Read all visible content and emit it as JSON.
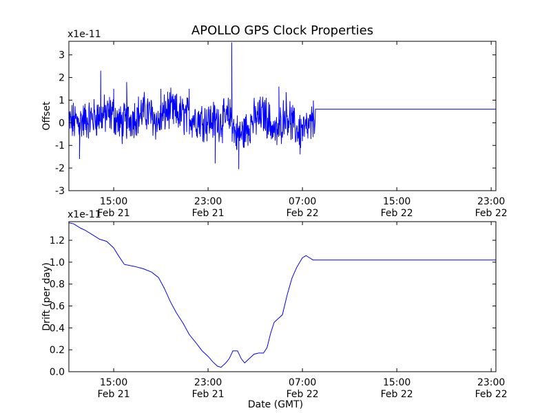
{
  "title": "APOLLO GPS Clock Properties",
  "chart_data": [
    {
      "type": "line",
      "ylabel": "Offset",
      "exponent_label": "x1e-11",
      "xlabel": "",
      "x_ticks": [
        {
          "time": "15:00",
          "date": "Feb 21",
          "hour": 15
        },
        {
          "time": "23:00",
          "date": "Feb 21",
          "hour": 23
        },
        {
          "time": "07:00",
          "date": "Feb 22",
          "hour": 31
        },
        {
          "time": "15:00",
          "date": "Feb 22",
          "hour": 39
        },
        {
          "time": "23:00",
          "date": "Feb 22",
          "hour": 47
        }
      ],
      "xlim_hours": [
        11.2,
        47.4
      ],
      "ylim": [
        -3,
        3.6
      ],
      "y_ticks": [
        "-3",
        "-2",
        "-1",
        "0",
        "1",
        "2",
        "3"
      ],
      "series": [
        {
          "color": "#0000ff",
          "noise_band": [
            -1.1,
            0.9
          ],
          "end_hour": 32.1,
          "x": [
            11.2,
            12.6,
            13.8,
            14.9,
            15.6,
            16.8,
            17.8,
            18.8,
            19.6,
            20.4,
            21.8,
            23.0,
            24.4,
            24.9,
            25.3,
            25.9,
            26.8,
            27.8,
            28.8,
            29.6,
            30.4,
            31.3,
            31.7,
            32.0,
            32.1,
            47.4
          ],
          "y": [
            0.0,
            0.1,
            0.3,
            0.4,
            -0.1,
            0.3,
            0.5,
            0.0,
            0.6,
            0.4,
            0.2,
            0.1,
            0.1,
            0.3,
            -0.5,
            -0.5,
            0.1,
            0.4,
            -0.5,
            0.5,
            -0.3,
            -0.3,
            -0.2,
            0.3,
            0.6,
            0.6
          ],
          "spikes": [
            {
              "x": 13.9,
              "y": 2.3
            },
            {
              "x": 15.0,
              "y": 1.5
            },
            {
              "x": 16.1,
              "y": 1.8
            },
            {
              "x": 19.0,
              "y": 1.5
            },
            {
              "x": 21.4,
              "y": 1.5
            },
            {
              "x": 24.3,
              "y": 1.0
            },
            {
              "x": 25.0,
              "y": 3.55
            },
            {
              "x": 25.6,
              "y": -2.05
            },
            {
              "x": 23.6,
              "y": -1.8
            },
            {
              "x": 12.1,
              "y": -1.6
            },
            {
              "x": 29.0,
              "y": 1.6
            },
            {
              "x": 30.8,
              "y": -1.4
            }
          ]
        }
      ]
    },
    {
      "type": "line",
      "ylabel": "Drift (per day)",
      "exponent_label": "x1e-11",
      "xlabel": "Date (GMT)",
      "x_ticks": [
        {
          "time": "15:00",
          "date": "Feb 21",
          "hour": 15
        },
        {
          "time": "23:00",
          "date": "Feb 21",
          "hour": 23
        },
        {
          "time": "07:00",
          "date": "Feb 22",
          "hour": 31
        },
        {
          "time": "15:00",
          "date": "Feb 22",
          "hour": 39
        },
        {
          "time": "23:00",
          "date": "Feb 22",
          "hour": 47
        }
      ],
      "xlim_hours": [
        11.2,
        47.4
      ],
      "ylim": [
        0.0,
        1.37
      ],
      "y_ticks": [
        "0.0",
        "0.2",
        "0.4",
        "0.6",
        "0.8",
        "1.0",
        "1.2"
      ],
      "series": [
        {
          "color": "#0000ff",
          "x": [
            11.2,
            11.6,
            12.2,
            12.6,
            13.2,
            13.8,
            14.4,
            15.0,
            15.4,
            15.9,
            16.8,
            17.5,
            18.2,
            18.8,
            19.3,
            19.8,
            20.3,
            20.9,
            21.4,
            22.0,
            22.5,
            23.0,
            23.4,
            23.8,
            24.1,
            24.5,
            24.8,
            25.1,
            25.5,
            25.8,
            26.1,
            26.5,
            26.9,
            27.3,
            27.7,
            28.0,
            28.3,
            28.6,
            28.9,
            29.3,
            29.7,
            30.1,
            30.5,
            31.0,
            31.3,
            31.6,
            31.9,
            32.1,
            47.4
          ],
          "y": [
            1.36,
            1.35,
            1.31,
            1.29,
            1.25,
            1.21,
            1.19,
            1.13,
            1.06,
            0.98,
            0.96,
            0.94,
            0.91,
            0.86,
            0.76,
            0.64,
            0.54,
            0.44,
            0.34,
            0.26,
            0.19,
            0.14,
            0.09,
            0.05,
            0.04,
            0.08,
            0.12,
            0.19,
            0.19,
            0.12,
            0.08,
            0.12,
            0.16,
            0.17,
            0.17,
            0.22,
            0.35,
            0.45,
            0.48,
            0.52,
            0.7,
            0.85,
            0.95,
            1.04,
            1.06,
            1.04,
            1.02,
            1.02,
            1.02
          ]
        }
      ]
    }
  ]
}
